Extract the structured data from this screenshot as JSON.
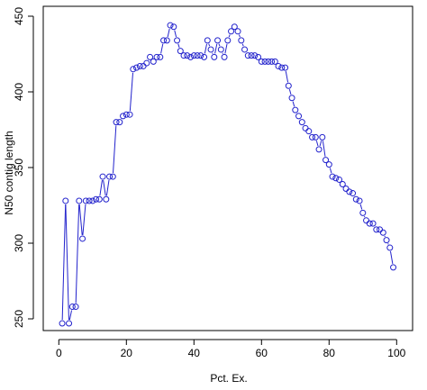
{
  "chart_data": {
    "type": "line",
    "title": "",
    "xlabel": "Pct. Ex.",
    "ylabel": "N50 contig length",
    "xlim": [
      0,
      100
    ],
    "ylim": [
      245,
      450
    ],
    "x_ticks": [
      0,
      20,
      40,
      60,
      80,
      100
    ],
    "y_ticks": [
      250,
      300,
      350,
      400,
      450
    ],
    "grid": false,
    "legend": "none",
    "colors": {
      "series": "#2222cc",
      "axis": "#000000"
    },
    "series": [
      {
        "x": [
          1,
          2,
          3,
          4,
          5,
          6,
          7,
          8,
          9,
          10,
          11,
          12,
          13,
          14,
          15,
          16,
          17,
          18,
          19,
          20,
          21,
          22,
          23,
          24,
          25,
          26,
          27,
          28,
          29,
          30,
          31,
          32,
          33,
          34,
          35,
          36,
          37,
          38,
          39,
          40,
          41,
          42,
          43,
          44,
          45,
          46,
          47,
          48,
          49,
          50,
          51,
          52,
          53,
          54,
          55,
          56,
          57,
          58,
          59,
          60,
          61,
          62,
          63,
          64,
          65,
          66,
          67,
          68,
          69,
          70,
          71,
          72,
          73,
          74,
          75,
          76,
          77,
          78,
          79,
          80,
          81,
          82,
          83,
          84,
          85,
          86,
          87,
          88,
          89,
          90,
          91,
          92,
          93,
          94,
          95,
          96,
          97,
          98,
          99
        ],
        "values": [
          247,
          328,
          247,
          258,
          258,
          328,
          303,
          328,
          328,
          328,
          329,
          329,
          344,
          329,
          344,
          344,
          380,
          380,
          384,
          385,
          385,
          415,
          416,
          417,
          417,
          419,
          423,
          420,
          423,
          423,
          434,
          434,
          444,
          443,
          434,
          427,
          424,
          424,
          423,
          424,
          424,
          424,
          423,
          434,
          428,
          423,
          434,
          428,
          423,
          434,
          440,
          443,
          440,
          434,
          428,
          424,
          424,
          424,
          423,
          420,
          420,
          420,
          420,
          420,
          417,
          416,
          416,
          404,
          396,
          388,
          384,
          380,
          376,
          374,
          370,
          370,
          362,
          370,
          355,
          352,
          344,
          343,
          342,
          339,
          336,
          334,
          333,
          329,
          328,
          320,
          315,
          313,
          313,
          309,
          309,
          307,
          302,
          297,
          284
        ]
      }
    ]
  }
}
